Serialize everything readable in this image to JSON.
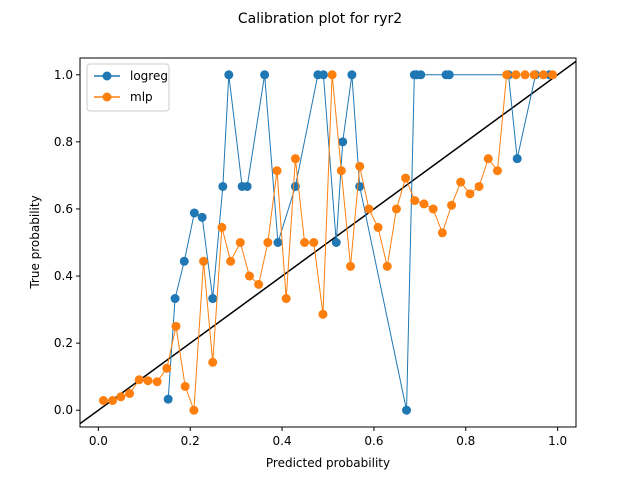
{
  "chart_data": {
    "type": "line",
    "title": "Calibration plot for ryr2",
    "xlabel": "Predicted probability",
    "ylabel": "True probability",
    "xlim": [
      -0.04,
      1.04
    ],
    "ylim": [
      -0.05,
      1.05
    ],
    "xticks": [
      "0.0",
      "0.2",
      "0.4",
      "0.6",
      "0.8",
      "1.0"
    ],
    "yticks": [
      "0.0",
      "0.2",
      "0.4",
      "0.6",
      "0.8",
      "1.0"
    ],
    "grid": false,
    "legend": {
      "placement": "top-left"
    },
    "reference_line": {
      "from": [
        -0.04,
        -0.04
      ],
      "to": [
        1.04,
        1.04
      ],
      "color": "#000000"
    },
    "series": [
      {
        "name": "logreg",
        "color": "#1f77b4",
        "points": [
          [
            0.152,
            0.033
          ],
          [
            0.167,
            0.333
          ],
          [
            0.187,
            0.444
          ],
          [
            0.209,
            0.588
          ],
          [
            0.226,
            0.575
          ],
          [
            0.249,
            0.333
          ],
          [
            0.271,
            0.667
          ],
          [
            0.284,
            1.0
          ],
          [
            0.313,
            0.667
          ],
          [
            0.324,
            0.667
          ],
          [
            0.362,
            1.0
          ],
          [
            0.391,
            0.5
          ],
          [
            0.429,
            0.667
          ],
          [
            0.478,
            1.0
          ],
          [
            0.49,
            1.0
          ],
          [
            0.518,
            0.5
          ],
          [
            0.532,
            0.8
          ],
          [
            0.552,
            1.0
          ],
          [
            0.569,
            0.667
          ],
          [
            0.671,
            0.0
          ],
          [
            0.688,
            1.0
          ],
          [
            0.693,
            1.0
          ],
          [
            0.702,
            1.0
          ],
          [
            0.757,
            1.0
          ],
          [
            0.764,
            1.0
          ],
          [
            0.893,
            1.0
          ],
          [
            0.912,
            0.75
          ],
          [
            0.952,
            1.0
          ],
          [
            0.982,
            1.0
          ]
        ]
      },
      {
        "name": "mlp",
        "color": "#ff7f0e",
        "points": [
          [
            0.011,
            0.029
          ],
          [
            0.031,
            0.029
          ],
          [
            0.049,
            0.04
          ],
          [
            0.068,
            0.05
          ],
          [
            0.089,
            0.091
          ],
          [
            0.108,
            0.088
          ],
          [
            0.128,
            0.085
          ],
          [
            0.149,
            0.125
          ],
          [
            0.169,
            0.25
          ],
          [
            0.189,
            0.071
          ],
          [
            0.208,
            0.0
          ],
          [
            0.229,
            0.444
          ],
          [
            0.249,
            0.143
          ],
          [
            0.269,
            0.545
          ],
          [
            0.288,
            0.444
          ],
          [
            0.309,
            0.5
          ],
          [
            0.329,
            0.4
          ],
          [
            0.349,
            0.375
          ],
          [
            0.369,
            0.5
          ],
          [
            0.389,
            0.714
          ],
          [
            0.409,
            0.333
          ],
          [
            0.429,
            0.75
          ],
          [
            0.449,
            0.5
          ],
          [
            0.469,
            0.5
          ],
          [
            0.489,
            0.286
          ],
          [
            0.509,
            1.0
          ],
          [
            0.529,
            0.714
          ],
          [
            0.549,
            0.429
          ],
          [
            0.569,
            0.727
          ],
          [
            0.589,
            0.6
          ],
          [
            0.609,
            0.545
          ],
          [
            0.629,
            0.429
          ],
          [
            0.649,
            0.6
          ],
          [
            0.669,
            0.692
          ],
          [
            0.689,
            0.625
          ],
          [
            0.709,
            0.615
          ],
          [
            0.729,
            0.6
          ],
          [
            0.749,
            0.529
          ],
          [
            0.769,
            0.611
          ],
          [
            0.789,
            0.68
          ],
          [
            0.809,
            0.645
          ],
          [
            0.829,
            0.667
          ],
          [
            0.849,
            0.75
          ],
          [
            0.869,
            0.714
          ],
          [
            0.889,
            1.0
          ],
          [
            0.909,
            1.0
          ],
          [
            0.929,
            1.0
          ],
          [
            0.949,
            1.0
          ],
          [
            0.969,
            1.0
          ],
          [
            0.989,
            1.0
          ]
        ]
      }
    ]
  }
}
